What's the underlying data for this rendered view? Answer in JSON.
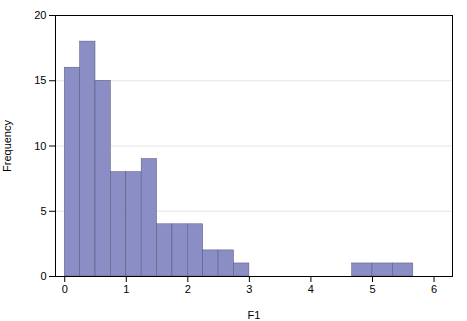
{
  "chart_data": {
    "type": "bar",
    "x": [
      0.0,
      0.25,
      0.5,
      0.75,
      1.0,
      1.25,
      1.5,
      1.75,
      2.0,
      2.25,
      2.5,
      2.75,
      4.67,
      5.0,
      5.33
    ],
    "widths": [
      0.25,
      0.25,
      0.25,
      0.25,
      0.25,
      0.25,
      0.25,
      0.25,
      0.25,
      0.25,
      0.25,
      0.25,
      0.333,
      0.333,
      0.333
    ],
    "values": [
      16,
      18,
      15,
      8,
      8,
      9,
      4,
      4,
      4,
      2,
      2,
      1,
      1,
      1,
      1
    ],
    "color": "#8b8ec4",
    "xlabel": "F1",
    "ylabel": "Frequency",
    "xlim": [
      -0.15,
      6.3
    ],
    "xticks": [
      0,
      1,
      2,
      3,
      4,
      5,
      6
    ],
    "ylim": [
      0,
      20
    ],
    "yticks": [
      0,
      5,
      10,
      15,
      20
    ],
    "grid": "y"
  }
}
